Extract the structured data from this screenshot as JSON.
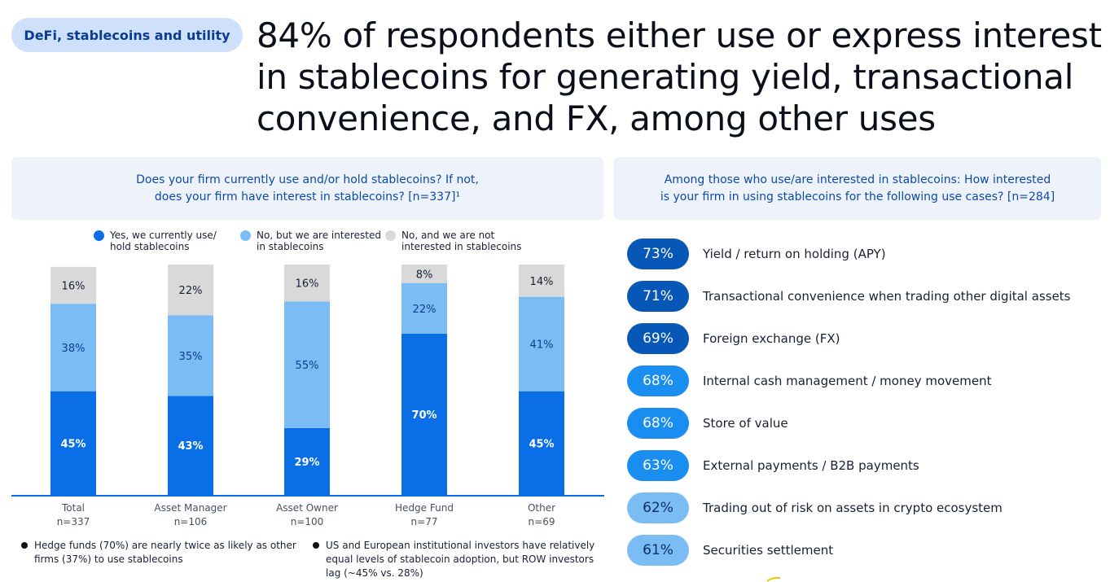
{
  "tag": "DeFi, stablecoins and utility",
  "headline": "84% of respondents either use or express interest in stablecoins for generating yield, transactional convenience, and FX, among other uses",
  "left_question": {
    "line1": "Does your firm currently use and/or hold stablecoins? If not,",
    "line2": "does your firm have interest in stablecoins? [n=337]¹"
  },
  "right_question": {
    "line1": "Among those who use/are interested in stablecoins: How interested",
    "line2": "is your firm in using stablecoins for the following use cases? [n=284]"
  },
  "legend": [
    {
      "line1": "Yes, we currently use/",
      "line2": "hold stablecoins",
      "color": "#0a6ee6"
    },
    {
      "line1": "No, but we are interested",
      "line2": "in stablecoins",
      "color": "#7bbcf5"
    },
    {
      "line1": "No, and we are not",
      "line2": "interested in stablecoins",
      "color": "#d9d9d9"
    }
  ],
  "chart_data": {
    "type": "bar",
    "stacked": true,
    "title": "Does your firm currently use and/or hold stablecoins? If not, does your firm have interest in stablecoins? [n=337]",
    "categories": [
      "Total",
      "Asset Manager",
      "Asset Owner",
      "Hedge Fund",
      "Other"
    ],
    "category_n": [
      "n=337",
      "n=106",
      "n=100",
      "n=77",
      "n=69"
    ],
    "series": [
      {
        "name": "Yes, we currently use/hold stablecoins",
        "values": [
          45,
          43,
          29,
          70,
          45
        ],
        "color": "#0a6ee6",
        "label_color": "#ffffff"
      },
      {
        "name": "No, but we are interested in stablecoins",
        "values": [
          38,
          35,
          55,
          22,
          41
        ],
        "color": "#7bbcf5",
        "label_color": "#0b3f8c"
      },
      {
        "name": "No, and we are not interested in stablecoins",
        "values": [
          16,
          22,
          16,
          8,
          14
        ],
        "color": "#d9d9d9",
        "label_color": "#1a1f36"
      }
    ],
    "ylim": [
      0,
      100
    ],
    "unit": "%"
  },
  "notes": [
    {
      "lines": [
        "Hedge funds (70%) are nearly twice as likely as other",
        "firms (37%) to use stablecoins"
      ]
    },
    {
      "lines": [
        "US and European institutional investors have relatively",
        "equal levels of stablecoin adoption, but ROW investors",
        "lag (~45% vs. 28%)"
      ]
    }
  ],
  "use_cases": [
    {
      "pct": "73%",
      "label": "Yield / return on holding (APY)",
      "color": "#0757b8"
    },
    {
      "pct": "71%",
      "label": "Transactional convenience when trading other digital assets",
      "color": "#0757b8"
    },
    {
      "pct": "69%",
      "label": "Foreign exchange (FX)",
      "color": "#0757b8"
    },
    {
      "pct": "68%",
      "label": "Internal cash management / money movement",
      "color": "#1a8df0"
    },
    {
      "pct": "68%",
      "label": "Store of value",
      "color": "#1a8df0"
    },
    {
      "pct": "63%",
      "label": "External payments / B2B payments",
      "color": "#1a8df0"
    },
    {
      "pct": "62%",
      "label": "Trading out of risk on assets in crypto ecosystem",
      "color": "#7bbcf5"
    },
    {
      "pct": "61%",
      "label": "Securities settlement",
      "color": "#7bbcf5"
    }
  ]
}
